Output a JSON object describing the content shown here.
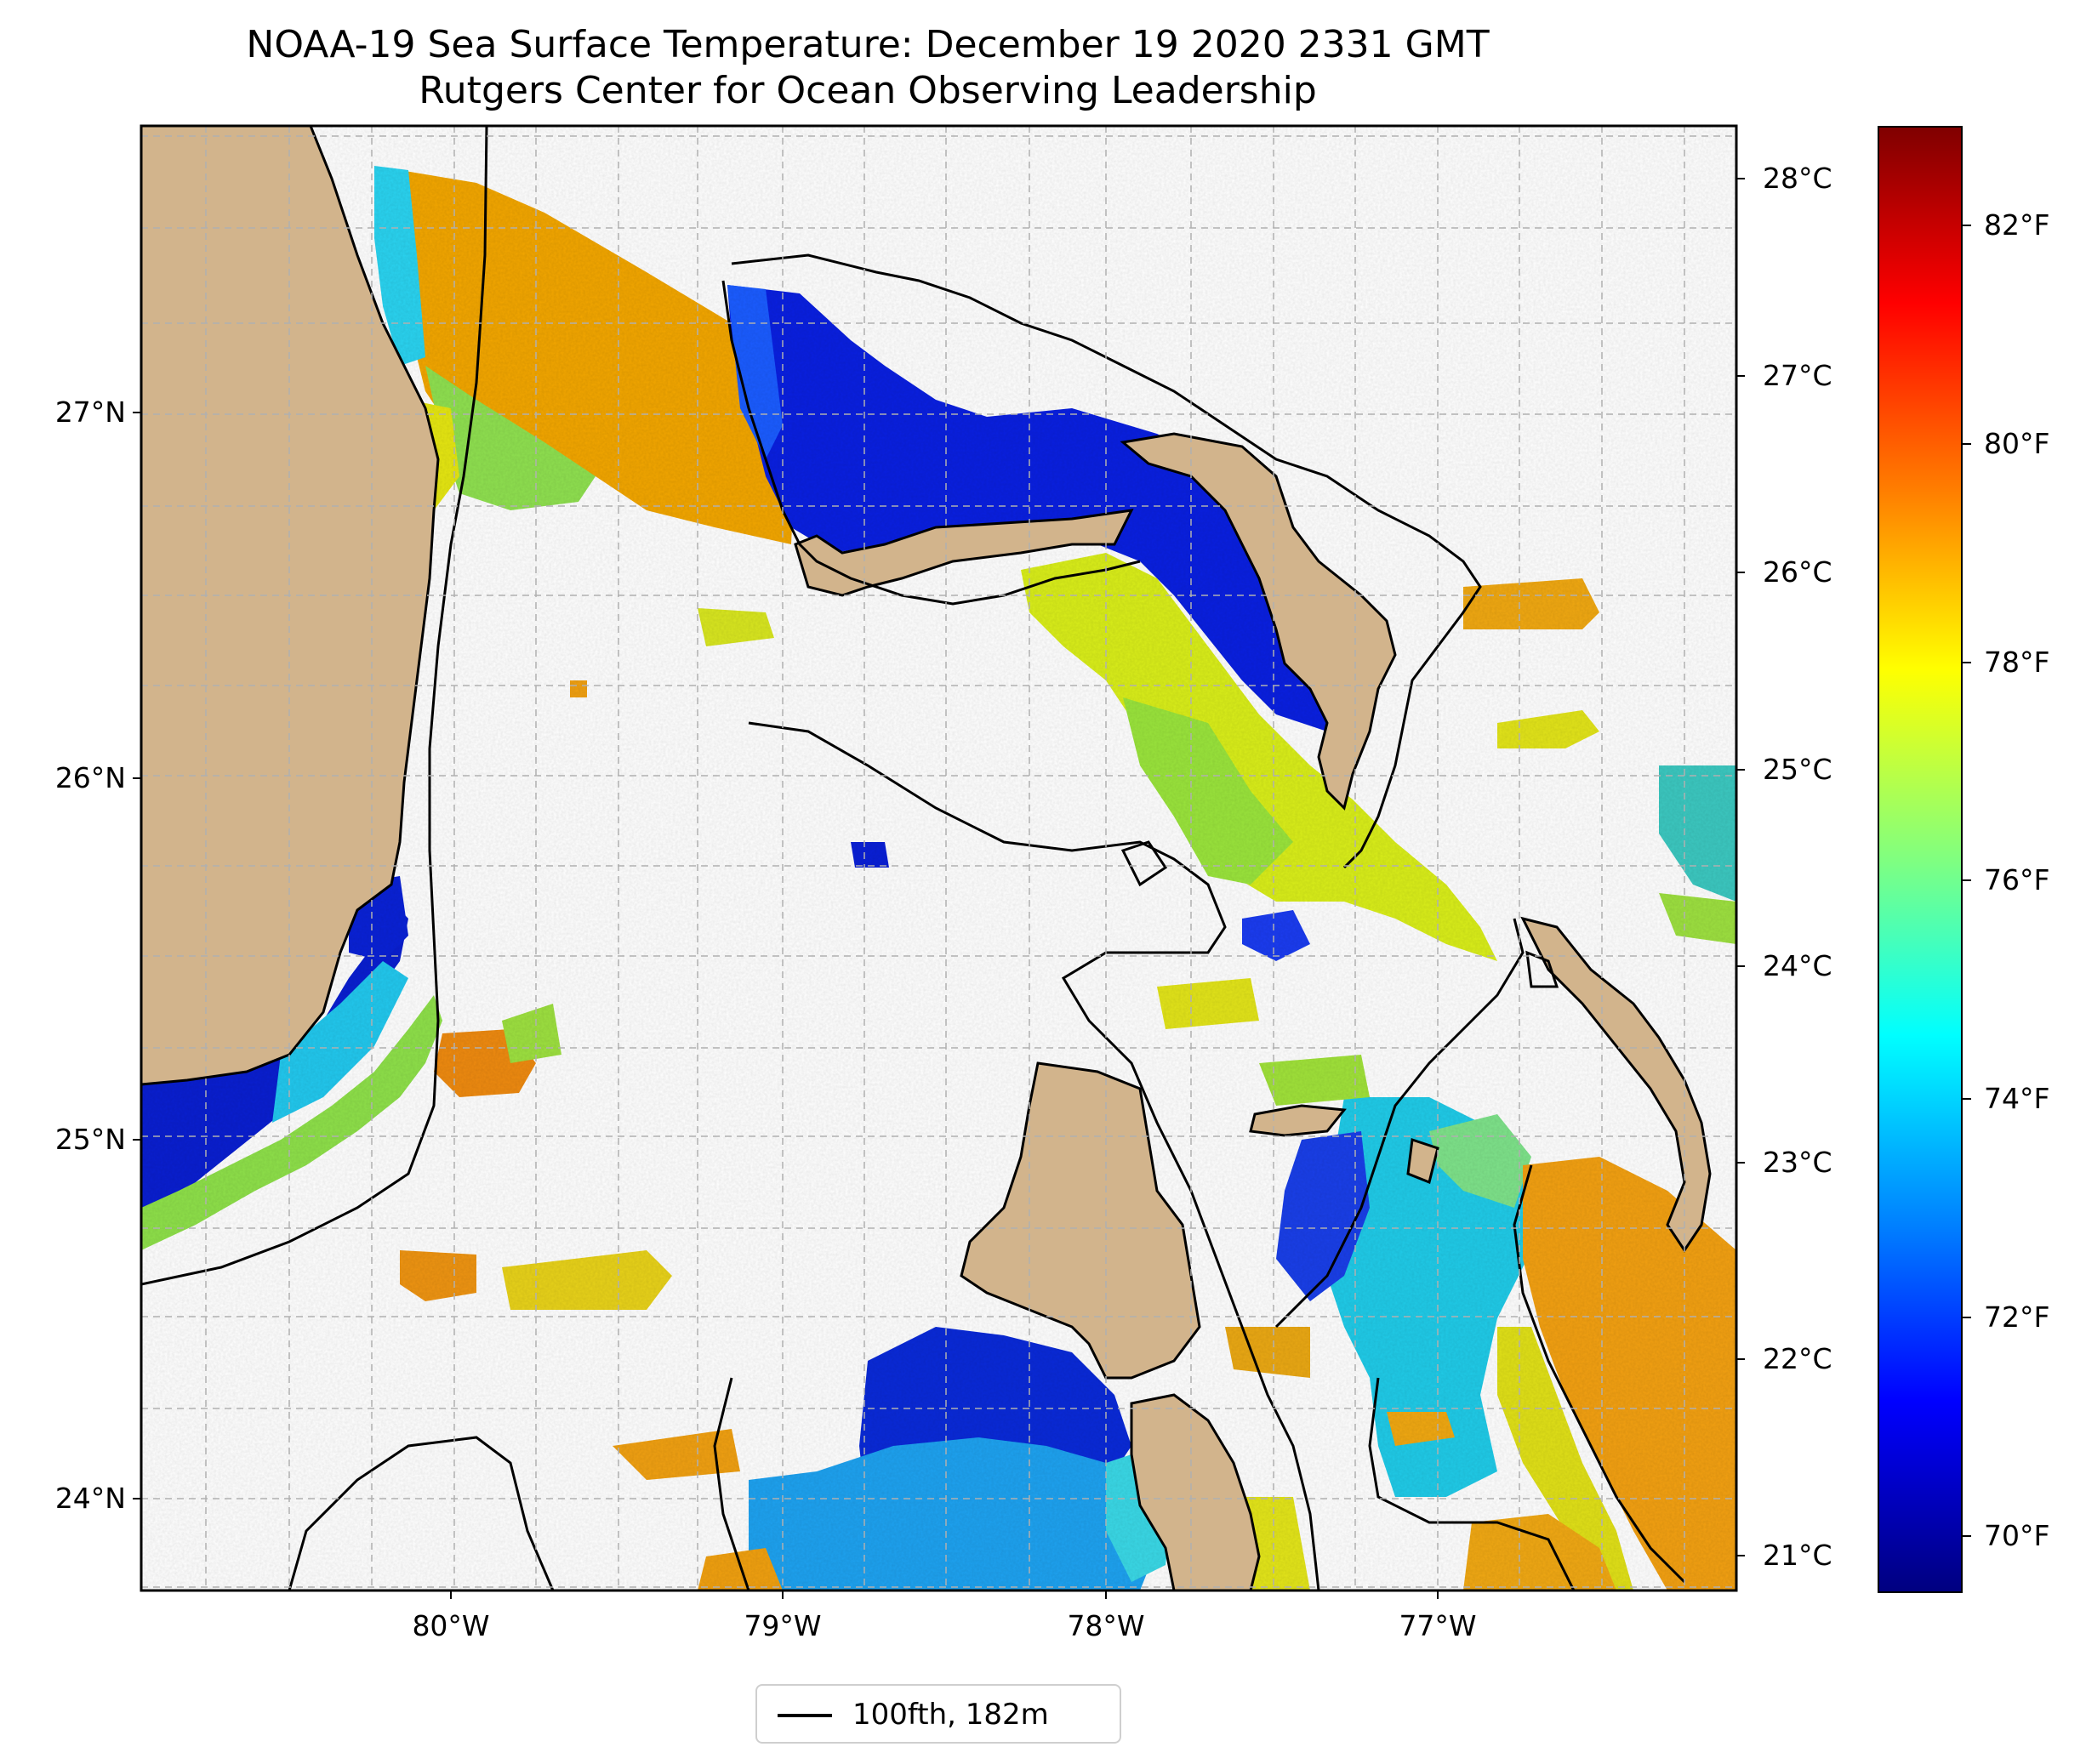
{
  "title": {
    "line1": "NOAA-19 Sea Surface Temperature: December 19 2020 2331 GMT",
    "line2": "Rutgers Center for Ocean Observing Leadership"
  },
  "map": {
    "lon_range": [
      -80.95,
      -76.1
    ],
    "lat_range": [
      23.75,
      27.8
    ],
    "lat_ticks": [
      {
        "value": 27,
        "label": "27°N"
      },
      {
        "value": 26,
        "label": "26°N"
      },
      {
        "value": 25,
        "label": "25°N"
      },
      {
        "value": 24,
        "label": "24°N"
      }
    ],
    "lon_ticks": [
      {
        "value": -80,
        "label": "80°W"
      },
      {
        "value": -79,
        "label": "79°W"
      },
      {
        "value": -78,
        "label": "78°W"
      },
      {
        "value": -77,
        "label": "77°W"
      }
    ],
    "gridlines": true,
    "colors": {
      "land": "#d2b48c",
      "ocean_nodata": "#ffffff",
      "contour": "#000000",
      "grid": "#b0b0b0"
    }
  },
  "colorbar": {
    "colormap": "jet",
    "celsius": [
      {
        "value": 28,
        "label": "28°C"
      },
      {
        "value": 27,
        "label": "27°C"
      },
      {
        "value": 26,
        "label": "26°C"
      },
      {
        "value": 25,
        "label": "25°C"
      },
      {
        "value": 24,
        "label": "24°C"
      },
      {
        "value": 23,
        "label": "23°C"
      },
      {
        "value": 22,
        "label": "22°C"
      },
      {
        "value": 21,
        "label": "21°C"
      }
    ],
    "fahrenheit": [
      {
        "value": 82,
        "label": "82°F"
      },
      {
        "value": 80,
        "label": "80°F"
      },
      {
        "value": 78,
        "label": "78°F"
      },
      {
        "value": 76,
        "label": "76°F"
      },
      {
        "value": 74,
        "label": "74°F"
      },
      {
        "value": 72,
        "label": "72°F"
      },
      {
        "value": 70,
        "label": "70°F"
      }
    ],
    "range_f": [
      69.4,
      83.0
    ]
  },
  "legend": {
    "label": "100fth, 182m"
  }
}
